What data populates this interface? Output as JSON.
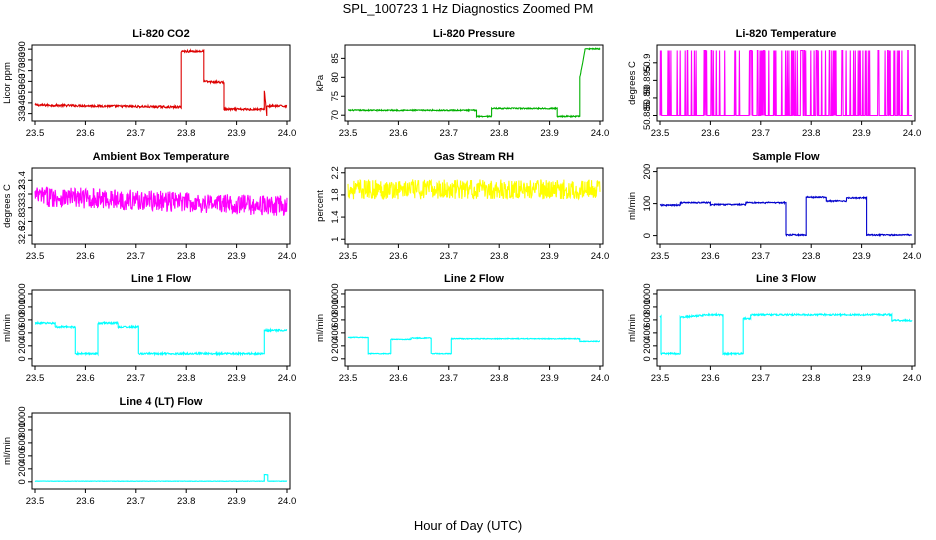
{
  "title": "SPL_100723  1 Hz Diagnostics Zoomed PM",
  "xlabel": "Hour of Day (UTC)",
  "chart_data": [
    {
      "type": "line",
      "title": "Li-820 CO2",
      "ylabel": "Licor ppm",
      "color": "#dd0000",
      "xlim": [
        23.5,
        24.0
      ],
      "ylim": [
        325,
        392
      ],
      "xticks": [
        "23.5",
        "23.6",
        "23.7",
        "23.8",
        "23.9",
        "24.0"
      ],
      "yticks": [
        330,
        340,
        350,
        360,
        370,
        380,
        390
      ],
      "noise": 1.0,
      "segments": [
        [
          23.5,
          23.79,
          338,
          336
        ],
        [
          23.79,
          23.835,
          388,
          388
        ],
        [
          23.835,
          23.875,
          360,
          359
        ],
        [
          23.875,
          23.955,
          334,
          334
        ],
        [
          23.955,
          23.96,
          352,
          328
        ],
        [
          23.96,
          24.0,
          337,
          337
        ]
      ]
    },
    {
      "type": "line",
      "title": "Li-820 Pressure",
      "ylabel": "kPa",
      "color": "#00b000",
      "xlim": [
        23.5,
        24.0
      ],
      "ylim": [
        69,
        88
      ],
      "xticks": [
        "23.5",
        "23.6",
        "23.7",
        "23.8",
        "23.9",
        "24.0"
      ],
      "yticks": [
        70,
        75,
        80,
        85
      ],
      "noise": 0.15,
      "segments": [
        [
          23.5,
          23.755,
          71.3,
          71.3
        ],
        [
          23.755,
          23.785,
          69.7,
          69.7
        ],
        [
          23.785,
          23.915,
          71.8,
          71.8
        ],
        [
          23.915,
          23.96,
          69.7,
          69.7
        ],
        [
          23.96,
          23.97,
          80,
          87
        ],
        [
          23.97,
          24.0,
          87.5,
          87.5
        ]
      ]
    },
    {
      "type": "spikes",
      "title": "Li-820 Temperature",
      "ylabel": "degrees C",
      "color": "#ff00ff",
      "xlim": [
        23.5,
        24.0
      ],
      "ylim": [
        50.884,
        50.9045
      ],
      "xticks": [
        "23.5",
        "23.6",
        "23.7",
        "23.8",
        "23.9",
        "24.0"
      ],
      "yticks": [
        50.885,
        50.89,
        50.895,
        50.9
      ],
      "base": 50.885,
      "high": 50.9035,
      "spike_count": 110
    },
    {
      "type": "line",
      "title": "Ambient Box Temperature",
      "ylabel": "degrees C",
      "color": "#ff00ff",
      "xlim": [
        23.5,
        24.0
      ],
      "ylim": [
        32.5,
        33.55
      ],
      "xticks": [
        "23.5",
        "23.6",
        "23.7",
        "23.8",
        "23.9",
        "24.0"
      ],
      "yticks": [
        32.6,
        32.8,
        33.0,
        33.2,
        33.4
      ],
      "noise": 0.15,
      "segments": [
        [
          23.5,
          24.0,
          33.17,
          33.02
        ]
      ]
    },
    {
      "type": "line",
      "title": "Gas Stream RH",
      "ylabel": "percent",
      "color": "#ffff00",
      "xlim": [
        23.5,
        24.0
      ],
      "ylim": [
        0.95,
        2.25
      ],
      "xticks": [
        "23.5",
        "23.6",
        "23.7",
        "23.8",
        "23.9",
        "24.0"
      ],
      "yticks": [
        1.0,
        1.4,
        1.8,
        2.2
      ],
      "noise": 0.18,
      "segments": [
        [
          23.5,
          24.0,
          1.9,
          1.9
        ]
      ]
    },
    {
      "type": "line",
      "title": "Sample Flow",
      "ylabel": "ml/min",
      "color": "#0000cc",
      "xlim": [
        23.5,
        24.0
      ],
      "ylim": [
        -20,
        205
      ],
      "xticks": [
        "23.5",
        "23.6",
        "23.7",
        "23.8",
        "23.9",
        "24.0"
      ],
      "yticks": [
        0,
        100,
        200
      ],
      "noise": 2,
      "segments": [
        [
          23.5,
          23.54,
          95,
          95
        ],
        [
          23.54,
          23.6,
          103,
          103
        ],
        [
          23.6,
          23.67,
          97,
          97
        ],
        [
          23.67,
          23.75,
          103,
          103
        ],
        [
          23.75,
          23.79,
          2,
          2
        ],
        [
          23.79,
          23.83,
          120,
          120
        ],
        [
          23.83,
          23.87,
          108,
          108
        ],
        [
          23.87,
          23.91,
          118,
          118
        ],
        [
          23.91,
          24.0,
          2,
          2
        ]
      ]
    },
    {
      "type": "line",
      "title": "Line 1 Flow",
      "ylabel": "ml/min",
      "color": "#00ffff",
      "xlim": [
        23.5,
        24.0
      ],
      "ylim": [
        -80,
        1030
      ],
      "xticks": [
        "23.5",
        "23.6",
        "23.7",
        "23.8",
        "23.9",
        "24.0"
      ],
      "yticks": [
        0,
        200,
        400,
        600,
        800,
        1000
      ],
      "noise": 14,
      "segments": [
        [
          23.5,
          23.54,
          550,
          550
        ],
        [
          23.54,
          23.58,
          490,
          490
        ],
        [
          23.58,
          23.625,
          80,
          80
        ],
        [
          23.625,
          23.665,
          550,
          550
        ],
        [
          23.665,
          23.705,
          490,
          490
        ],
        [
          23.705,
          23.955,
          80,
          80
        ],
        [
          23.955,
          24.0,
          440,
          440
        ]
      ]
    },
    {
      "type": "line",
      "title": "Line 2 Flow",
      "ylabel": "ml/min",
      "color": "#00ffff",
      "xlim": [
        23.5,
        24.0
      ],
      "ylim": [
        -80,
        1030
      ],
      "xticks": [
        "23.5",
        "23.6",
        "23.7",
        "23.8",
        "23.9",
        "24.0"
      ],
      "yticks": [
        0,
        200,
        400,
        600,
        800,
        1000
      ],
      "noise": 6,
      "segments": [
        [
          23.5,
          23.54,
          330,
          330
        ],
        [
          23.54,
          23.585,
          80,
          80
        ],
        [
          23.585,
          23.625,
          300,
          300
        ],
        [
          23.625,
          23.665,
          320,
          320
        ],
        [
          23.665,
          23.705,
          80,
          80
        ],
        [
          23.705,
          23.96,
          310,
          310
        ],
        [
          23.96,
          24.0,
          270,
          270
        ]
      ]
    },
    {
      "type": "line",
      "title": "Line 3 Flow",
      "ylabel": "ml/min",
      "color": "#00ffff",
      "xlim": [
        23.5,
        24.0
      ],
      "ylim": [
        -80,
        1030
      ],
      "xticks": [
        "23.5",
        "23.6",
        "23.7",
        "23.8",
        "23.9",
        "24.0"
      ],
      "yticks": [
        0,
        200,
        400,
        600,
        800,
        1000
      ],
      "noise": 12,
      "segments": [
        [
          23.5,
          23.502,
          650,
          650
        ],
        [
          23.502,
          23.54,
          80,
          80
        ],
        [
          23.54,
          23.585,
          640,
          670
        ],
        [
          23.585,
          23.625,
          680,
          680
        ],
        [
          23.625,
          23.665,
          80,
          80
        ],
        [
          23.665,
          23.68,
          620,
          620
        ],
        [
          23.68,
          23.96,
          680,
          680
        ],
        [
          23.96,
          24.0,
          590,
          590
        ]
      ]
    },
    {
      "type": "line",
      "title": "Line 4 (LT) Flow",
      "ylabel": "ml/min",
      "color": "#00ffff",
      "xlim": [
        23.5,
        24.0
      ],
      "ylim": [
        -80,
        1030
      ],
      "xticks": [
        "23.5",
        "23.6",
        "23.7",
        "23.8",
        "23.9",
        "24.0"
      ],
      "yticks": [
        0,
        200,
        400,
        600,
        800,
        1000
      ],
      "noise": 3,
      "segments": [
        [
          23.5,
          23.955,
          10,
          10
        ],
        [
          23.955,
          23.962,
          110,
          110
        ],
        [
          23.962,
          24.0,
          10,
          10
        ]
      ]
    }
  ]
}
